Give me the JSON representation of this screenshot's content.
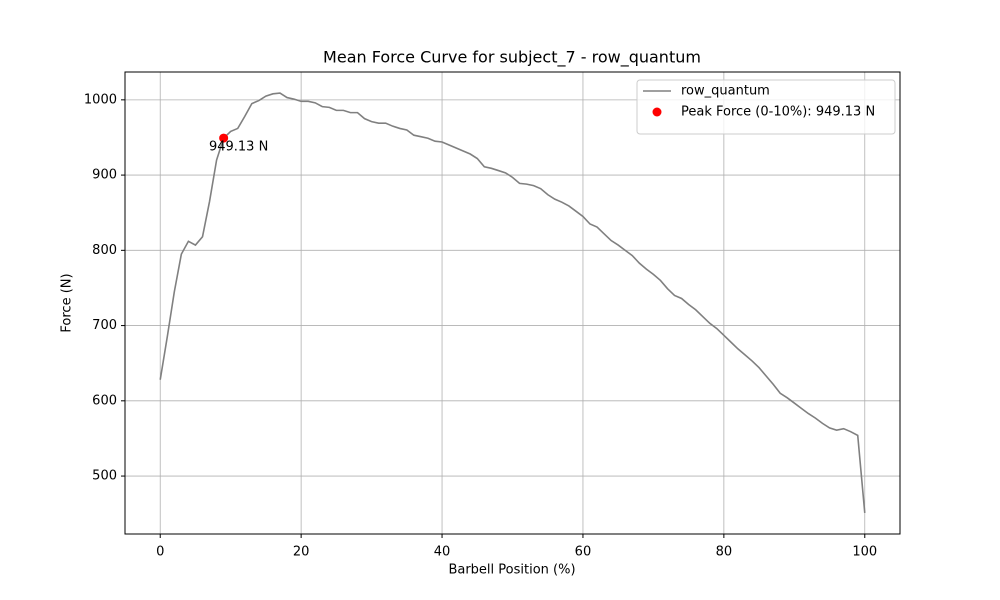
{
  "chart_data": {
    "type": "line",
    "title": "Mean Force Curve for subject_7 - row_quantum",
    "xlabel": "Barbell Position (%)",
    "ylabel": "Force (N)",
    "xlim": [
      -5,
      105
    ],
    "ylim": [
      423,
      1037
    ],
    "xticks": [
      0,
      20,
      40,
      60,
      80,
      100
    ],
    "yticks": [
      500,
      600,
      700,
      800,
      900,
      1000
    ],
    "grid": true,
    "legend": "upper right",
    "series": [
      {
        "name": "row_quantum",
        "type": "line",
        "color": "#808080",
        "x": [
          0,
          1,
          2,
          3,
          4,
          5,
          6,
          7,
          8,
          9,
          10,
          11,
          12,
          13,
          14,
          15,
          16,
          17,
          18,
          19,
          20,
          21,
          22,
          23,
          24,
          25,
          26,
          27,
          28,
          29,
          30,
          31,
          32,
          33,
          34,
          35,
          36,
          37,
          38,
          39,
          40,
          41,
          42,
          43,
          44,
          45,
          46,
          47,
          48,
          49,
          50,
          51,
          52,
          53,
          54,
          55,
          56,
          57,
          58,
          59,
          60,
          61,
          62,
          63,
          64,
          65,
          66,
          67,
          68,
          69,
          70,
          71,
          72,
          73,
          74,
          75,
          76,
          77,
          78,
          79,
          80,
          81,
          82,
          83,
          84,
          85,
          86,
          87,
          88,
          89,
          90,
          91,
          92,
          93,
          94,
          95,
          96,
          97,
          98,
          99,
          100
        ],
        "values": [
          628,
          685,
          745,
          795,
          812,
          807,
          818,
          865,
          920,
          949.13,
          958,
          962,
          978,
          995,
          999,
          1005,
          1008,
          1009,
          1003,
          1001,
          998,
          998,
          996,
          991,
          990,
          986,
          986,
          983,
          983,
          975,
          971,
          969,
          969,
          965,
          962,
          960,
          953,
          951,
          949,
          945,
          944,
          940,
          936,
          932,
          928,
          922,
          911,
          909,
          906,
          903,
          897,
          889,
          888,
          886,
          882,
          874,
          868,
          864,
          859,
          852,
          845,
          835,
          831,
          822,
          813,
          807,
          800,
          793,
          783,
          775,
          768,
          760,
          749,
          740,
          736,
          728,
          721,
          712,
          703,
          696,
          687,
          678,
          669,
          661,
          653,
          644,
          633,
          622,
          610,
          604,
          597,
          590,
          583,
          577,
          570,
          564,
          561,
          563,
          559,
          554,
          451
        ]
      },
      {
        "name": "Peak Force (0-10%): 949.13 N",
        "type": "scatter",
        "color": "#ff0000",
        "x": [
          9
        ],
        "values": [
          949.13
        ],
        "value_labels": [
          "949.13 N"
        ]
      }
    ]
  }
}
